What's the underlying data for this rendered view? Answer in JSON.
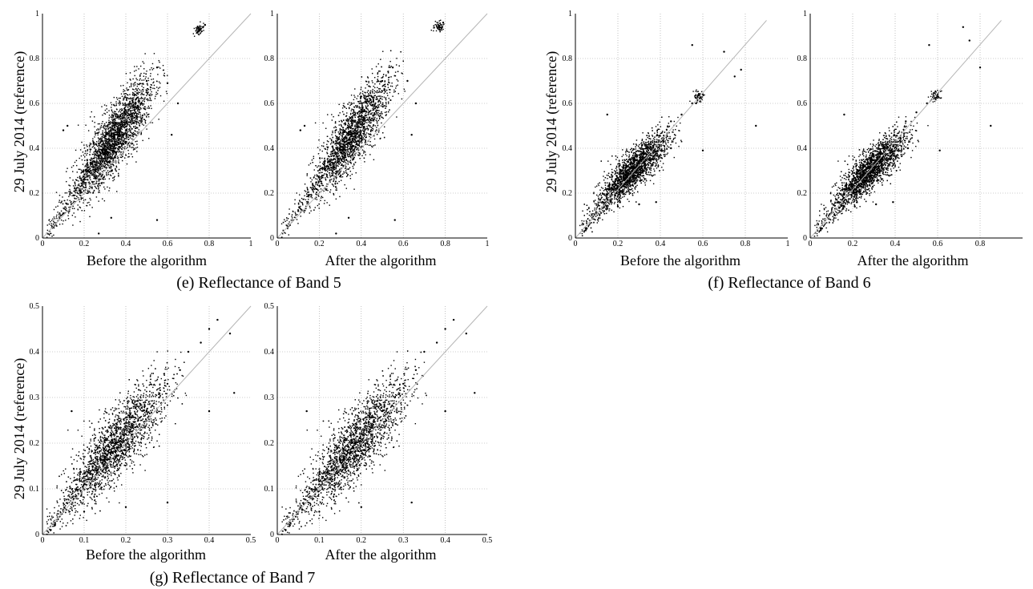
{
  "figure": {
    "groups": [
      {
        "caption": "(e) Reflectance of Band 5",
        "ylabel": "29 July 2014 (reference)",
        "panels": [
          {
            "xlabel": "Before the algorithm",
            "ticks": [
              "0",
              "0.2",
              "0.4",
              "0.6",
              "0.8",
              "1"
            ]
          },
          {
            "xlabel": "After the algorithm",
            "ticks": [
              "0",
              "0.2",
              "0.4",
              "0.6",
              "0.8",
              "1"
            ]
          }
        ]
      },
      {
        "caption": "(f) Reflectance of Band 6",
        "ylabel": "29 July 2014 (reference)",
        "panels": [
          {
            "xlabel": "Before the algorithm",
            "ticks": [
              "0",
              "0.2",
              "0.4",
              "0.6",
              "0.8",
              "1"
            ]
          },
          {
            "xlabel": "After the algorithm",
            "ticks": [
              "0",
              "0.2",
              "0.4",
              "0.6",
              "0.8"
            ]
          }
        ]
      },
      {
        "caption": "(g) Reflectance of Band 7",
        "ylabel": "29 July 2014 (reference)",
        "panels": [
          {
            "xlabel": "Before the algorithm",
            "ticks": [
              "0",
              "0.1",
              "0.2",
              "0.3",
              "0.4",
              "0.5"
            ]
          },
          {
            "xlabel": "After the algorithm",
            "ticks": [
              "0",
              "0.1",
              "0.2",
              "0.3",
              "0.4",
              "0.5"
            ]
          }
        ]
      }
    ]
  },
  "chart_data": [
    {
      "type": "scatter",
      "group": "(e) Reflectance of Band 5",
      "xlabel": "Before the algorithm",
      "ylabel": "29 July 2014 (reference)",
      "xlim": [
        0,
        1
      ],
      "ylim": [
        0,
        1
      ],
      "grid": true,
      "xticks": [
        0,
        0.2,
        0.4,
        0.6,
        0.8,
        1
      ],
      "yticks": [
        0,
        0.2,
        0.4,
        0.6,
        0.8,
        1
      ],
      "reference_line": {
        "from": [
          0,
          0
        ],
        "to": [
          1,
          1
        ]
      },
      "point_cloud": {
        "center": [
          0.35,
          0.45
        ],
        "spread_x": 0.09,
        "spread_y": 0.13,
        "approx_range_x": [
          0.02,
          0.6
        ],
        "approx_range_y": [
          0.0,
          0.84
        ],
        "tail": [
          0.75,
          0.93
        ]
      },
      "points": [
        [
          0.05,
          0.05
        ],
        [
          0.1,
          0.11
        ],
        [
          0.15,
          0.19
        ],
        [
          0.2,
          0.26
        ],
        [
          0.25,
          0.34
        ],
        [
          0.3,
          0.41
        ],
        [
          0.35,
          0.48
        ],
        [
          0.4,
          0.55
        ],
        [
          0.45,
          0.62
        ],
        [
          0.5,
          0.7
        ],
        [
          0.55,
          0.76
        ],
        [
          0.6,
          0.69
        ],
        [
          0.65,
          0.6
        ],
        [
          0.75,
          0.92
        ],
        [
          0.77,
          0.94
        ],
        [
          0.78,
          0.95
        ],
        [
          0.1,
          0.48
        ],
        [
          0.12,
          0.5
        ],
        [
          0.33,
          0.09
        ],
        [
          0.27,
          0.02
        ],
        [
          0.55,
          0.08
        ],
        [
          0.62,
          0.46
        ]
      ]
    },
    {
      "type": "scatter",
      "group": "(e) Reflectance of Band 5",
      "xlabel": "After the algorithm",
      "ylabel": "29 July 2014 (reference)",
      "xlim": [
        0,
        1
      ],
      "ylim": [
        0,
        1
      ],
      "grid": true,
      "xticks": [
        0,
        0.2,
        0.4,
        0.6,
        0.8,
        1
      ],
      "yticks": [
        0,
        0.2,
        0.4,
        0.6,
        0.8,
        1
      ],
      "reference_line": {
        "from": [
          0,
          0
        ],
        "to": [
          1,
          1
        ]
      },
      "point_cloud": {
        "center": [
          0.36,
          0.46
        ],
        "spread_x": 0.09,
        "spread_y": 0.13,
        "approx_range_x": [
          0.02,
          0.62
        ],
        "approx_range_y": [
          0.0,
          0.84
        ],
        "tail": [
          0.77,
          0.94
        ]
      },
      "points": [
        [
          0.05,
          0.05
        ],
        [
          0.1,
          0.12
        ],
        [
          0.15,
          0.19
        ],
        [
          0.2,
          0.27
        ],
        [
          0.25,
          0.34
        ],
        [
          0.3,
          0.42
        ],
        [
          0.35,
          0.49
        ],
        [
          0.4,
          0.56
        ],
        [
          0.45,
          0.63
        ],
        [
          0.5,
          0.7
        ],
        [
          0.55,
          0.76
        ],
        [
          0.62,
          0.7
        ],
        [
          0.66,
          0.6
        ],
        [
          0.77,
          0.93
        ],
        [
          0.78,
          0.95
        ],
        [
          0.79,
          0.96
        ],
        [
          0.11,
          0.48
        ],
        [
          0.13,
          0.5
        ],
        [
          0.34,
          0.09
        ],
        [
          0.28,
          0.02
        ],
        [
          0.56,
          0.08
        ],
        [
          0.64,
          0.46
        ]
      ]
    },
    {
      "type": "scatter",
      "group": "(f) Reflectance of Band 6",
      "xlabel": "Before the algorithm",
      "ylabel": "29 July 2014 (reference)",
      "xlim": [
        0,
        1
      ],
      "ylim": [
        0,
        1
      ],
      "grid": true,
      "xticks": [
        0,
        0.2,
        0.4,
        0.6,
        0.8,
        1
      ],
      "yticks": [
        0,
        0.2,
        0.4,
        0.6,
        0.8,
        1
      ],
      "reference_line": {
        "from": [
          0,
          0
        ],
        "to": [
          0.9,
          0.97
        ]
      },
      "point_cloud": {
        "center": [
          0.28,
          0.31
        ],
        "spread_x": 0.08,
        "spread_y": 0.08,
        "approx_range_x": [
          0.02,
          0.6
        ],
        "approx_range_y": [
          0.0,
          0.6
        ],
        "tail": [
          0.58,
          0.63
        ]
      },
      "points": [
        [
          0.05,
          0.04
        ],
        [
          0.1,
          0.11
        ],
        [
          0.15,
          0.17
        ],
        [
          0.2,
          0.23
        ],
        [
          0.25,
          0.29
        ],
        [
          0.3,
          0.33
        ],
        [
          0.35,
          0.38
        ],
        [
          0.4,
          0.43
        ],
        [
          0.45,
          0.52
        ],
        [
          0.5,
          0.55
        ],
        [
          0.55,
          0.6
        ],
        [
          0.6,
          0.64
        ],
        [
          0.55,
          0.86
        ],
        [
          0.7,
          0.83
        ],
        [
          0.75,
          0.72
        ],
        [
          0.78,
          0.75
        ],
        [
          0.85,
          0.5
        ],
        [
          0.15,
          0.55
        ],
        [
          0.2,
          0.14
        ],
        [
          0.3,
          0.15
        ],
        [
          0.38,
          0.16
        ],
        [
          0.45,
          0.4
        ],
        [
          0.6,
          0.39
        ]
      ]
    },
    {
      "type": "scatter",
      "group": "(f) Reflectance of Band 6",
      "xlabel": "After the algorithm",
      "ylabel": "29 July 2014 (reference)",
      "xlim": [
        0,
        1
      ],
      "ylim": [
        0,
        1
      ],
      "grid": true,
      "xticks": [
        0,
        0.2,
        0.4,
        0.6,
        0.8
      ],
      "yticks": [
        0,
        0.2,
        0.4,
        0.6,
        0.8,
        1
      ],
      "reference_line": {
        "from": [
          0,
          0
        ],
        "to": [
          0.9,
          0.97
        ]
      },
      "point_cloud": {
        "center": [
          0.29,
          0.31
        ],
        "spread_x": 0.08,
        "spread_y": 0.08,
        "approx_range_x": [
          0.02,
          0.6
        ],
        "approx_range_y": [
          0.0,
          0.62
        ],
        "tail": [
          0.59,
          0.63
        ]
      },
      "points": [
        [
          0.05,
          0.04
        ],
        [
          0.1,
          0.11
        ],
        [
          0.15,
          0.17
        ],
        [
          0.2,
          0.23
        ],
        [
          0.25,
          0.29
        ],
        [
          0.3,
          0.33
        ],
        [
          0.35,
          0.38
        ],
        [
          0.4,
          0.43
        ],
        [
          0.45,
          0.52
        ],
        [
          0.5,
          0.56
        ],
        [
          0.55,
          0.6
        ],
        [
          0.6,
          0.64
        ],
        [
          0.56,
          0.86
        ],
        [
          0.72,
          0.94
        ],
        [
          0.75,
          0.88
        ],
        [
          0.8,
          0.76
        ],
        [
          0.85,
          0.5
        ],
        [
          0.16,
          0.55
        ],
        [
          0.21,
          0.14
        ],
        [
          0.31,
          0.15
        ],
        [
          0.39,
          0.16
        ],
        [
          0.46,
          0.4
        ],
        [
          0.61,
          0.39
        ]
      ]
    },
    {
      "type": "scatter",
      "group": "(g) Reflectance of Band 7",
      "xlabel": "Before the algorithm",
      "ylabel": "29 July 2014 (reference)",
      "xlim": [
        0,
        0.5
      ],
      "ylim": [
        0,
        0.5
      ],
      "grid": true,
      "xticks": [
        0,
        0.1,
        0.2,
        0.3,
        0.4,
        0.5
      ],
      "yticks": [
        0,
        0.1,
        0.2,
        0.3,
        0.4,
        0.5
      ],
      "reference_line": {
        "from": [
          0,
          0
        ],
        "to": [
          0.5,
          0.5
        ]
      },
      "point_cloud": {
        "center": [
          0.18,
          0.2
        ],
        "spread_x": 0.06,
        "spread_y": 0.07,
        "approx_range_x": [
          0.01,
          0.47
        ],
        "approx_range_y": [
          0.0,
          0.5
        ]
      },
      "points": [
        [
          0.03,
          0.02
        ],
        [
          0.05,
          0.05
        ],
        [
          0.08,
          0.08
        ],
        [
          0.1,
          0.11
        ],
        [
          0.13,
          0.14
        ],
        [
          0.15,
          0.16
        ],
        [
          0.18,
          0.19
        ],
        [
          0.2,
          0.22
        ],
        [
          0.23,
          0.25
        ],
        [
          0.25,
          0.27
        ],
        [
          0.28,
          0.3
        ],
        [
          0.3,
          0.33
        ],
        [
          0.33,
          0.36
        ],
        [
          0.35,
          0.4
        ],
        [
          0.38,
          0.42
        ],
        [
          0.4,
          0.45
        ],
        [
          0.42,
          0.47
        ],
        [
          0.45,
          0.44
        ],
        [
          0.46,
          0.31
        ],
        [
          0.4,
          0.27
        ],
        [
          0.1,
          0.05
        ],
        [
          0.2,
          0.06
        ],
        [
          0.3,
          0.07
        ],
        [
          0.07,
          0.27
        ],
        [
          0.02,
          0.01
        ]
      ]
    },
    {
      "type": "scatter",
      "group": "(g) Reflectance of Band 7",
      "xlabel": "After the algorithm",
      "ylabel": "29 July 2014 (reference)",
      "xlim": [
        0,
        0.5
      ],
      "ylim": [
        0,
        0.5
      ],
      "grid": true,
      "xticks": [
        0,
        0.1,
        0.2,
        0.3,
        0.4,
        0.5
      ],
      "yticks": [
        0,
        0.1,
        0.2,
        0.3,
        0.4,
        0.5
      ],
      "reference_line": {
        "from": [
          0,
          0
        ],
        "to": [
          0.5,
          0.5
        ]
      },
      "point_cloud": {
        "center": [
          0.19,
          0.2
        ],
        "spread_x": 0.06,
        "spread_y": 0.07,
        "approx_range_x": [
          0.01,
          0.47
        ],
        "approx_range_y": [
          0.0,
          0.5
        ]
      },
      "points": [
        [
          0.03,
          0.02
        ],
        [
          0.05,
          0.05
        ],
        [
          0.08,
          0.08
        ],
        [
          0.1,
          0.11
        ],
        [
          0.13,
          0.14
        ],
        [
          0.15,
          0.16
        ],
        [
          0.18,
          0.19
        ],
        [
          0.2,
          0.22
        ],
        [
          0.23,
          0.25
        ],
        [
          0.25,
          0.27
        ],
        [
          0.28,
          0.3
        ],
        [
          0.3,
          0.33
        ],
        [
          0.33,
          0.36
        ],
        [
          0.35,
          0.4
        ],
        [
          0.38,
          0.42
        ],
        [
          0.4,
          0.45
        ],
        [
          0.42,
          0.47
        ],
        [
          0.45,
          0.44
        ],
        [
          0.47,
          0.31
        ],
        [
          0.4,
          0.27
        ],
        [
          0.1,
          0.05
        ],
        [
          0.2,
          0.06
        ],
        [
          0.32,
          0.07
        ],
        [
          0.07,
          0.27
        ],
        [
          0.02,
          0.01
        ]
      ]
    }
  ]
}
